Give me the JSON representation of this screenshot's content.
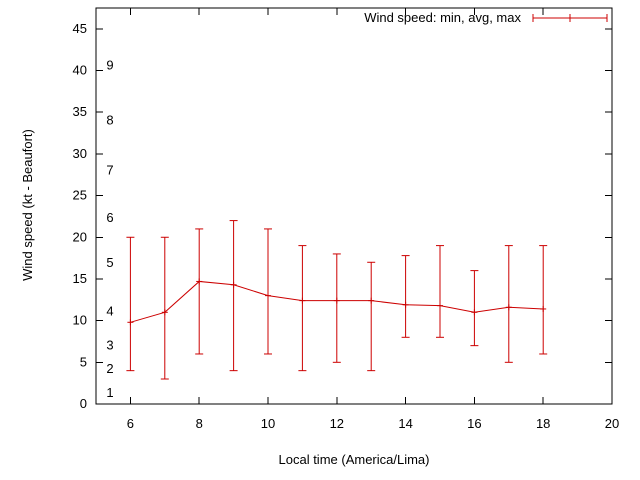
{
  "chart_data": {
    "type": "line",
    "legend_label": "Wind speed: min, avg, max",
    "xlabel": "Local time (America/Lima)",
    "ylabel": "Wind speed (kt - Beaufort)",
    "xlim": [
      5,
      20
    ],
    "ylim": [
      0,
      47.5
    ],
    "xticks": [
      6,
      8,
      10,
      12,
      14,
      16,
      18,
      20
    ],
    "yticks": [
      0,
      5,
      10,
      15,
      20,
      25,
      30,
      35,
      40,
      45
    ],
    "grid": false,
    "legend_position": "top-right-inside",
    "beaufort_scale_labels": [
      {
        "label": "1",
        "kt": 1.3
      },
      {
        "label": "2",
        "kt": 4.2
      },
      {
        "label": "3",
        "kt": 7.0
      },
      {
        "label": "4",
        "kt": 11.1
      },
      {
        "label": "5",
        "kt": 16.9
      },
      {
        "label": "6",
        "kt": 22.3
      },
      {
        "label": "7",
        "kt": 28.0
      },
      {
        "label": "8",
        "kt": 34.0
      },
      {
        "label": "9",
        "kt": 40.6
      }
    ],
    "series": {
      "name": "Wind speed: min, avg, max",
      "color": "#cc0000",
      "x": [
        6,
        7,
        8,
        9,
        10,
        11,
        12,
        13,
        14,
        15,
        16,
        17,
        18
      ],
      "avg": [
        9.8,
        11.0,
        14.7,
        14.3,
        13.0,
        12.4,
        12.4,
        12.4,
        11.9,
        11.8,
        11.0,
        11.6,
        11.4
      ],
      "min": [
        4,
        3,
        6,
        4,
        6,
        4,
        5,
        4,
        8,
        8,
        7,
        5,
        6
      ],
      "max": [
        20,
        20,
        21,
        22,
        21,
        19,
        18,
        17,
        17.8,
        19,
        16,
        19,
        19
      ]
    }
  }
}
